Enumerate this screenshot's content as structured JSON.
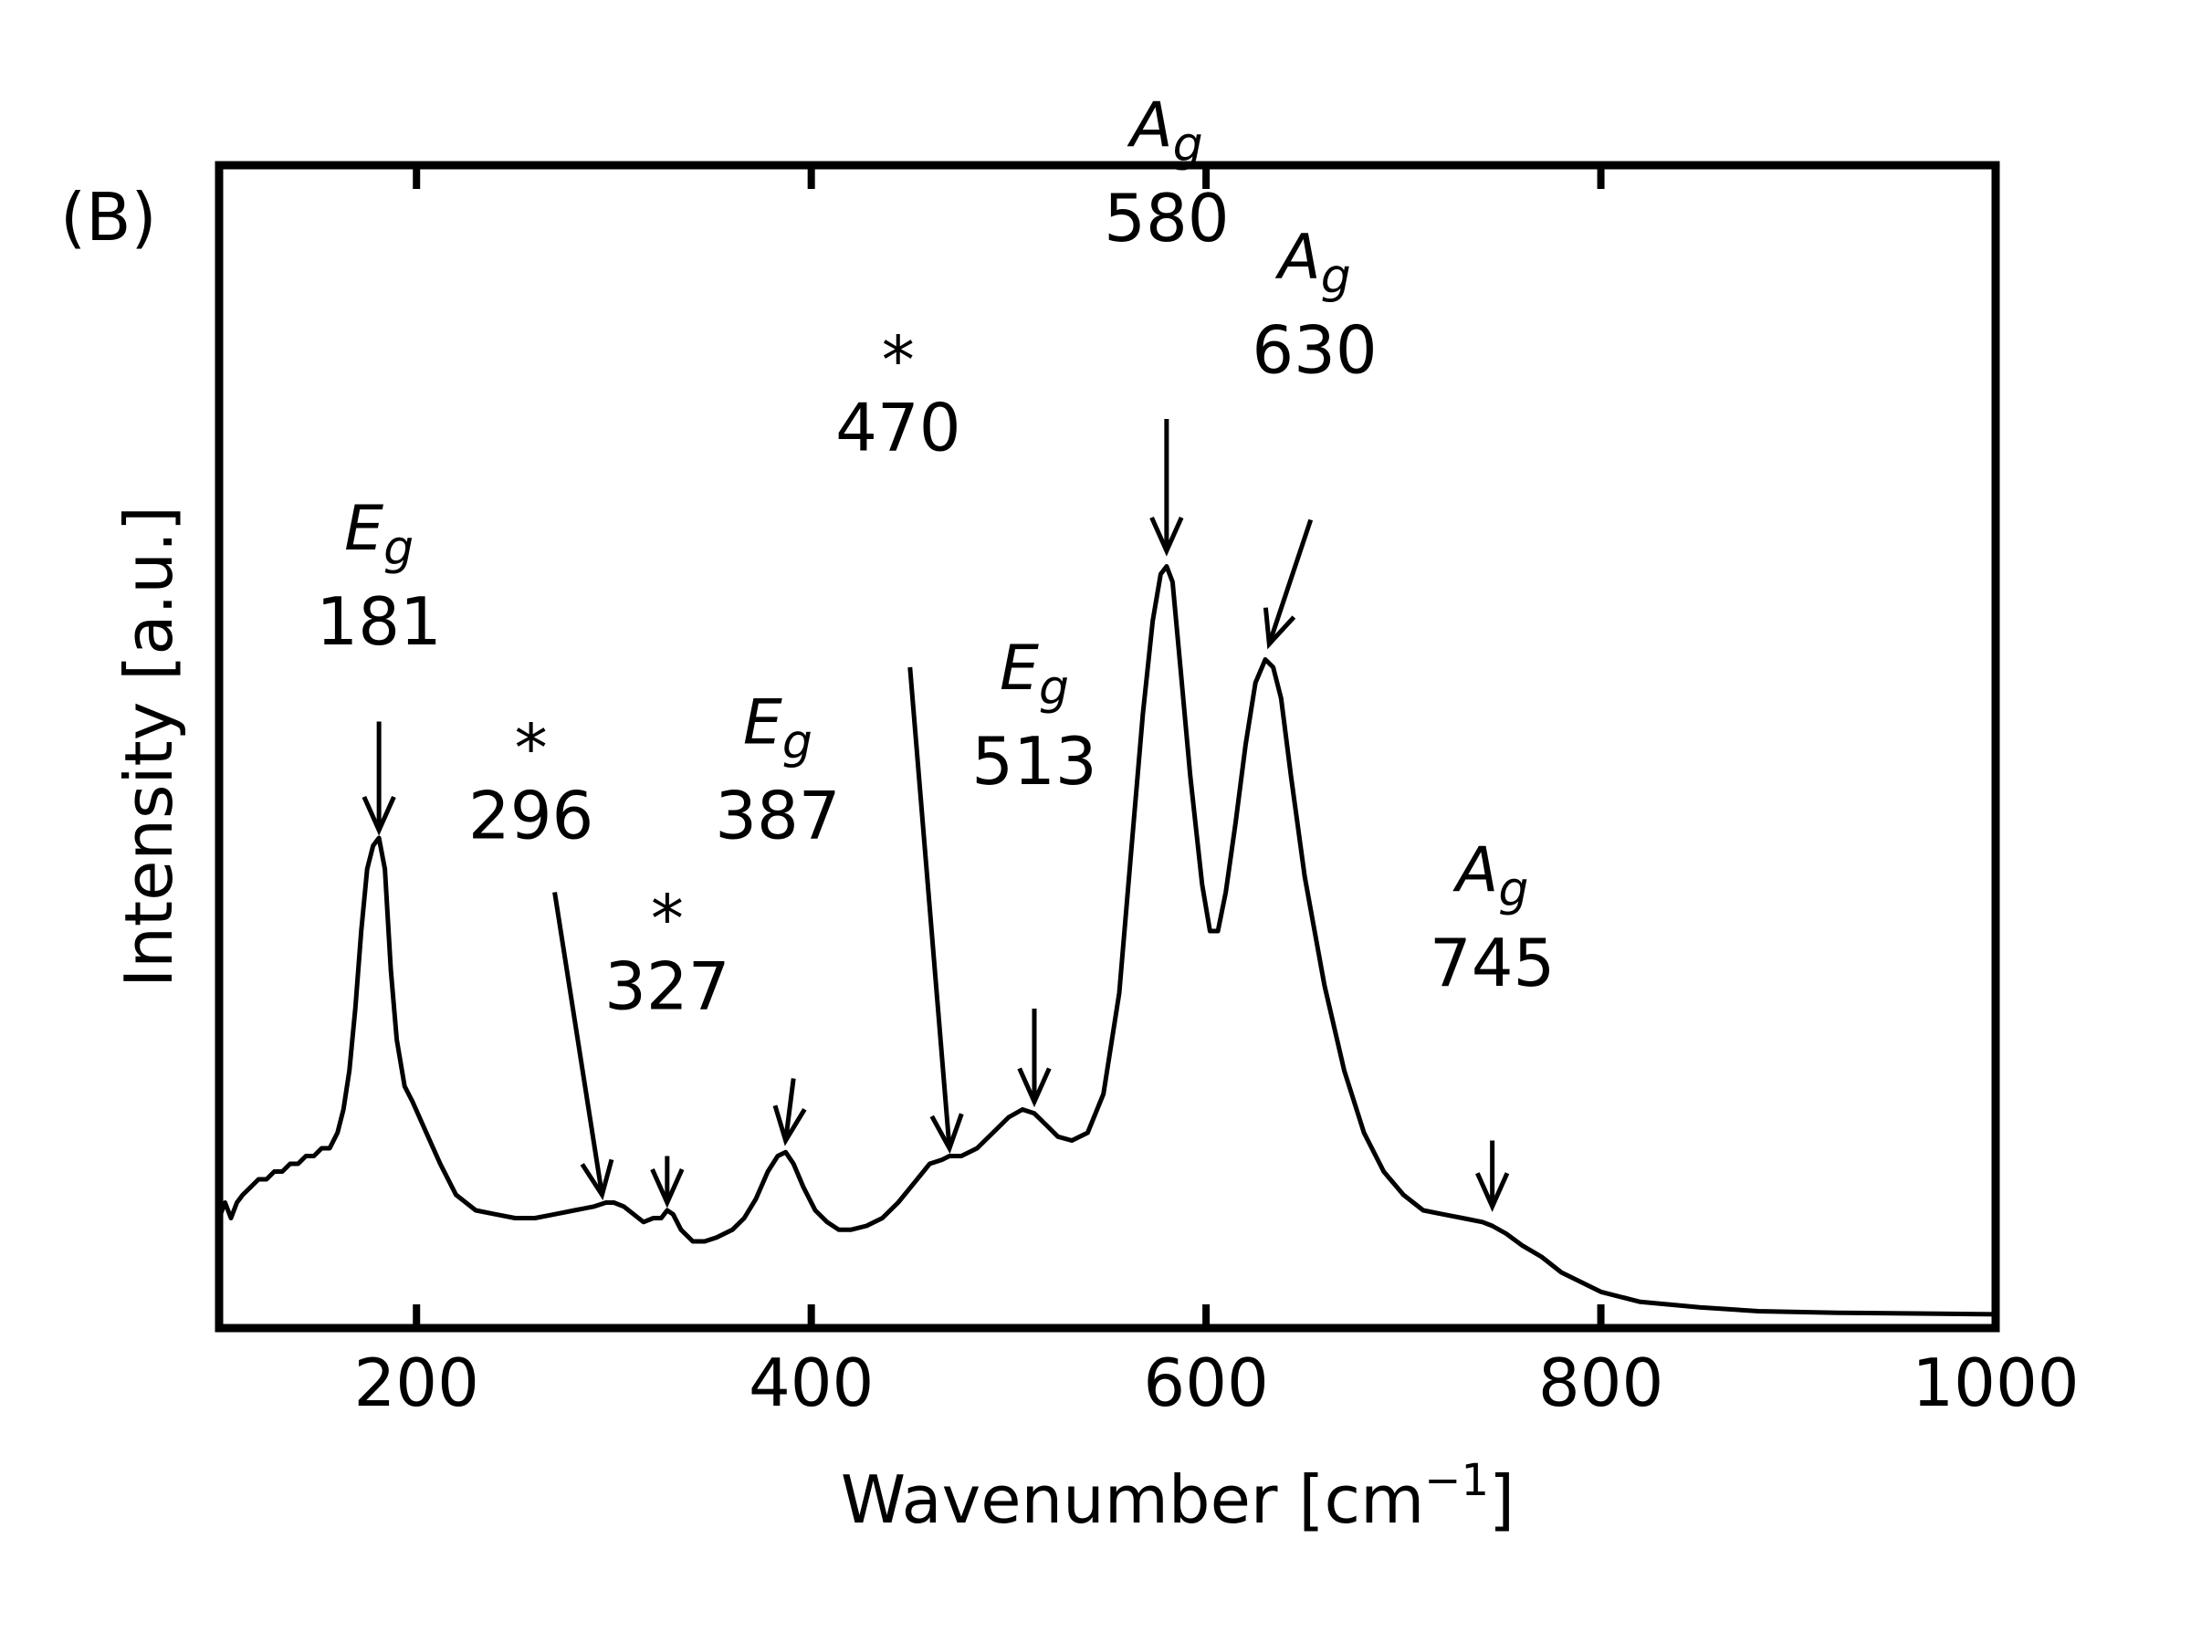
{
  "chart_data": {
    "type": "line",
    "panel_label": "(B)",
    "title": "",
    "xlabel_main": "Wavenumber [cm",
    "xlabel_sup": "−1",
    "xlabel_end": "]",
    "ylabel": "Intensity [a.u.]",
    "xlim": [
      100,
      1000
    ],
    "ylim": [
      0,
      1
    ],
    "x_ticks": [
      200,
      400,
      600,
      800,
      1000
    ],
    "x_tick_labels": [
      "200",
      "400",
      "600",
      "800",
      "1000"
    ],
    "y_ticks_shown": false,
    "grid": false,
    "legend": "none",
    "line_color": "#000000",
    "series": [
      {
        "x": [
          100,
          103,
          106,
          109,
          112,
          116,
          120,
          124,
          128,
          132,
          136,
          140,
          144,
          148,
          152,
          156,
          160,
          163,
          166,
          169,
          172,
          175,
          178,
          181,
          184,
          187,
          190,
          194,
          198,
          205,
          212,
          220,
          230,
          240,
          250,
          260,
          270,
          280,
          290,
          296,
          300,
          305,
          310,
          315,
          320,
          324,
          327,
          330,
          334,
          340,
          346,
          352,
          360,
          366,
          372,
          378,
          383,
          387,
          391,
          396,
          402,
          408,
          414,
          420,
          428,
          436,
          444,
          452,
          460,
          466,
          470,
          476,
          484,
          492,
          500,
          507,
          513,
          519,
          525,
          532,
          540,
          548,
          556,
          562,
          568,
          573,
          577,
          580,
          583,
          587,
          592,
          598,
          602,
          606,
          610,
          615,
          620,
          625,
          630,
          634,
          638,
          643,
          650,
          660,
          670,
          680,
          690,
          700,
          710,
          720,
          730,
          740,
          745,
          752,
          760,
          770,
          780,
          800,
          820,
          850,
          880,
          920,
          960,
          1000
        ],
        "y": [
          0.13,
          0.15,
          0.13,
          0.15,
          0.16,
          0.17,
          0.18,
          0.18,
          0.19,
          0.19,
          0.2,
          0.2,
          0.21,
          0.21,
          0.22,
          0.22,
          0.24,
          0.27,
          0.32,
          0.4,
          0.5,
          0.58,
          0.61,
          0.62,
          0.58,
          0.45,
          0.36,
          0.3,
          0.28,
          0.24,
          0.2,
          0.16,
          0.14,
          0.135,
          0.13,
          0.13,
          0.135,
          0.14,
          0.145,
          0.15,
          0.15,
          0.145,
          0.135,
          0.125,
          0.13,
          0.13,
          0.14,
          0.135,
          0.115,
          0.1,
          0.1,
          0.105,
          0.115,
          0.13,
          0.155,
          0.19,
          0.21,
          0.215,
          0.2,
          0.17,
          0.14,
          0.125,
          0.115,
          0.115,
          0.12,
          0.13,
          0.15,
          0.175,
          0.2,
          0.205,
          0.21,
          0.21,
          0.22,
          0.24,
          0.26,
          0.27,
          0.265,
          0.25,
          0.235,
          0.23,
          0.24,
          0.29,
          0.42,
          0.6,
          0.78,
          0.9,
          0.96,
          0.97,
          0.95,
          0.84,
          0.7,
          0.56,
          0.5,
          0.5,
          0.55,
          0.64,
          0.74,
          0.82,
          0.85,
          0.84,
          0.8,
          0.7,
          0.57,
          0.43,
          0.32,
          0.24,
          0.19,
          0.16,
          0.14,
          0.135,
          0.13,
          0.125,
          0.12,
          0.11,
          0.095,
          0.08,
          0.06,
          0.035,
          0.022,
          0.015,
          0.01,
          0.008,
          0.007,
          0.006
        ]
      }
    ],
    "annotations": [
      {
        "value": "181",
        "mode": "E",
        "sub": "g",
        "label_x": 181,
        "label_y": 0.9,
        "arrow_from": [
          181,
          0.77
        ],
        "arrow_to": [
          181,
          0.63
        ]
      },
      {
        "value": "296",
        "mode": "*",
        "sub": "",
        "label_x": 258,
        "label_y": 0.65,
        "arrow_from": [
          270,
          0.55
        ],
        "arrow_to": [
          294,
          0.16
        ]
      },
      {
        "value": "327",
        "mode": "*",
        "sub": "",
        "label_x": 327,
        "label_y": 0.43,
        "arrow_from": [
          327,
          0.21
        ],
        "arrow_to": [
          327,
          0.15
        ]
      },
      {
        "value": "387",
        "mode": "E",
        "sub": "g",
        "label_x": 383,
        "label_y": 0.65,
        "arrow_from": [
          391,
          0.31
        ],
        "arrow_to": [
          387,
          0.23
        ]
      },
      {
        "value": "470",
        "mode": "*",
        "sub": "",
        "label_x": 444,
        "label_y": 1.15,
        "arrow_from": [
          450,
          0.84
        ],
        "arrow_to": [
          470,
          0.22
        ]
      },
      {
        "value": "513",
        "mode": "E",
        "sub": "g",
        "label_x": 513,
        "label_y": 0.72,
        "arrow_from": [
          513,
          0.4
        ],
        "arrow_to": [
          513,
          0.28
        ]
      },
      {
        "value": "580",
        "mode": "A",
        "sub": "g",
        "label_x": 580,
        "label_y": 1.42,
        "arrow_from": [
          580,
          1.16
        ],
        "arrow_to": [
          580,
          0.99
        ]
      },
      {
        "value": "630",
        "mode": "A",
        "sub": "g",
        "label_x": 655,
        "label_y": 1.25,
        "arrow_from": [
          653,
          1.03
        ],
        "arrow_to": [
          632,
          0.87
        ]
      },
      {
        "value": "745",
        "mode": "A",
        "sub": "g",
        "label_x": 745,
        "label_y": 0.46,
        "arrow_from": [
          745,
          0.23
        ],
        "arrow_to": [
          745,
          0.145
        ]
      }
    ]
  }
}
